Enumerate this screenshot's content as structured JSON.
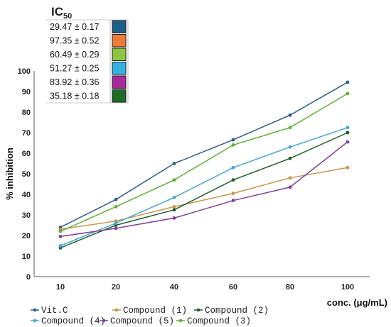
{
  "ic50": {
    "title": "IC",
    "subscript": "50",
    "rows": [
      {
        "text": "29.47 ± 0.17",
        "color": "#1c5f86"
      },
      {
        "text": "97.35 ± 0.52",
        "color": "#ec7a34"
      },
      {
        "text": "60.49 ± 0.29",
        "color": "#8cc63f"
      },
      {
        "text": "51.27 ± 0.25",
        "color": "#31b2e2"
      },
      {
        "text": "83.92 ± 0.36",
        "color": "#a82a9c"
      },
      {
        "text": "35.18 ± 0.18",
        "color": "#1f6b2a"
      }
    ]
  },
  "chart_data": {
    "type": "line",
    "categories": [
      "10",
      "20",
      "40",
      "60",
      "80",
      "100"
    ],
    "xlabel": "conc. (μg/mL)",
    "ylabel": "% inhibition",
    "ylim": [
      0,
      100
    ],
    "yticks": [
      "0",
      "10",
      "20",
      "30",
      "40",
      "50",
      "60",
      "70",
      "80",
      "90",
      "100"
    ],
    "grid": false,
    "legend_position": "bottom",
    "series": [
      {
        "name": "Vit.C",
        "color": "#2b5d86",
        "values": [
          24.0,
          37.5,
          55.0,
          66.5,
          78.5,
          94.5
        ]
      },
      {
        "name": "Compound  (1)",
        "color": "#c9944a",
        "values": [
          23.0,
          27.0,
          34.0,
          40.5,
          48.0,
          53.0
        ]
      },
      {
        "name": "Compound  (2)",
        "color": "#1f5e2a",
        "values": [
          14.0,
          25.0,
          32.5,
          47.0,
          57.5,
          70.0
        ]
      },
      {
        "name": "Compound  (4)",
        "color": "#4aa3d4",
        "values": [
          15.0,
          26.0,
          38.5,
          53.0,
          63.0,
          72.5
        ]
      },
      {
        "name": "Compound  (5)",
        "color": "#7f3f9a",
        "values": [
          19.5,
          23.5,
          28.5,
          37.0,
          43.5,
          65.5
        ]
      },
      {
        "name": "Compound  (3)",
        "color": "#5fae3a",
        "values": [
          22.0,
          34.0,
          47.0,
          64.0,
          72.5,
          89.0
        ]
      }
    ]
  }
}
